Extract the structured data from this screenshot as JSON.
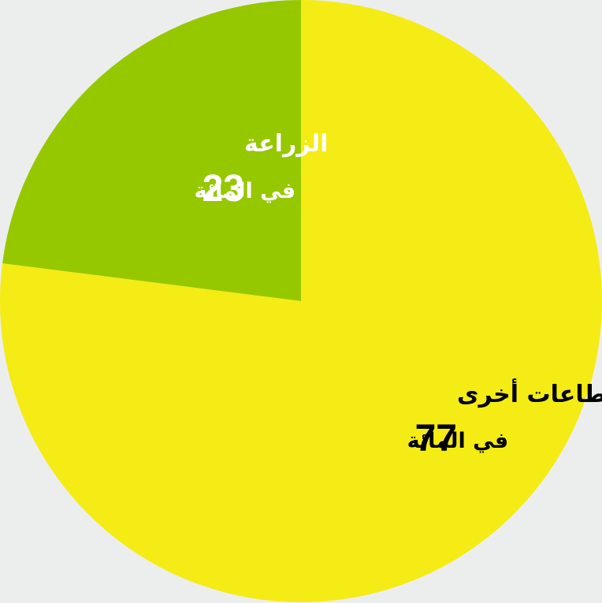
{
  "chart_data": {
    "type": "pie",
    "start_angle_deg": 0,
    "direction": "counterclockwise",
    "slices": [
      {
        "label": "الزراعة",
        "value": 23,
        "value_text": "23",
        "unit_text": "في المائة",
        "color": "#96c800",
        "text_color": "#ffffff"
      },
      {
        "label": "قطاعات أخرى",
        "value": 77,
        "value_text": "77",
        "unit_text": "في المائة",
        "color": "#f4ec14",
        "text_color": "#000000"
      }
    ]
  },
  "colors": {
    "background": "#eceeee"
  }
}
